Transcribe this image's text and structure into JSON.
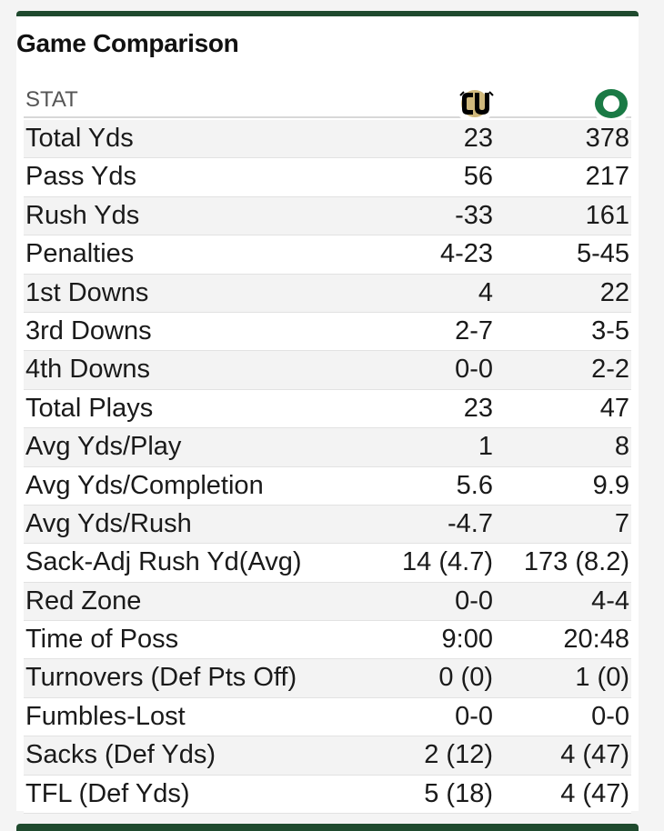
{
  "title": "Game Comparison",
  "header": {
    "stat_label": "STAT",
    "team_a_logo": "colorado-buffaloes-logo",
    "team_b_logo": "oregon-ducks-logo"
  },
  "colors": {
    "accent": "#1f4a2e",
    "oregon_green": "#1a7a45",
    "row_alt": "#f3f3f3"
  },
  "rows": [
    {
      "label": "Total Yds",
      "a": "23",
      "b": "378"
    },
    {
      "label": "Pass Yds",
      "a": "56",
      "b": "217"
    },
    {
      "label": "Rush Yds",
      "a": "-33",
      "b": "161"
    },
    {
      "label": "Penalties",
      "a": "4-23",
      "b": "5-45"
    },
    {
      "label": "1st Downs",
      "a": "4",
      "b": "22"
    },
    {
      "label": "3rd Downs",
      "a": "2-7",
      "b": "3-5"
    },
    {
      "label": "4th Downs",
      "a": "0-0",
      "b": "2-2"
    },
    {
      "label": "Total Plays",
      "a": "23",
      "b": "47"
    },
    {
      "label": "Avg Yds/Play",
      "a": "1",
      "b": "8"
    },
    {
      "label": "Avg Yds/Completion",
      "a": "5.6",
      "b": "9.9"
    },
    {
      "label": "Avg Yds/Rush",
      "a": "-4.7",
      "b": "7"
    },
    {
      "label": "Sack-Adj Rush Yd(Avg)",
      "a": "14 (4.7)",
      "b": "173 (8.2)"
    },
    {
      "label": "Red Zone",
      "a": "0-0",
      "b": "4-4"
    },
    {
      "label": "Time of Poss",
      "a": "9:00",
      "b": "20:48"
    },
    {
      "label": "Turnovers (Def Pts Off)",
      "a": "0 (0)",
      "b": "1 (0)"
    },
    {
      "label": "Fumbles-Lost",
      "a": "0-0",
      "b": "0-0"
    },
    {
      "label": "Sacks (Def Yds)",
      "a": "2 (12)",
      "b": "4 (47)"
    },
    {
      "label": "TFL (Def Yds)",
      "a": "5 (18)",
      "b": "4 (47)"
    }
  ]
}
